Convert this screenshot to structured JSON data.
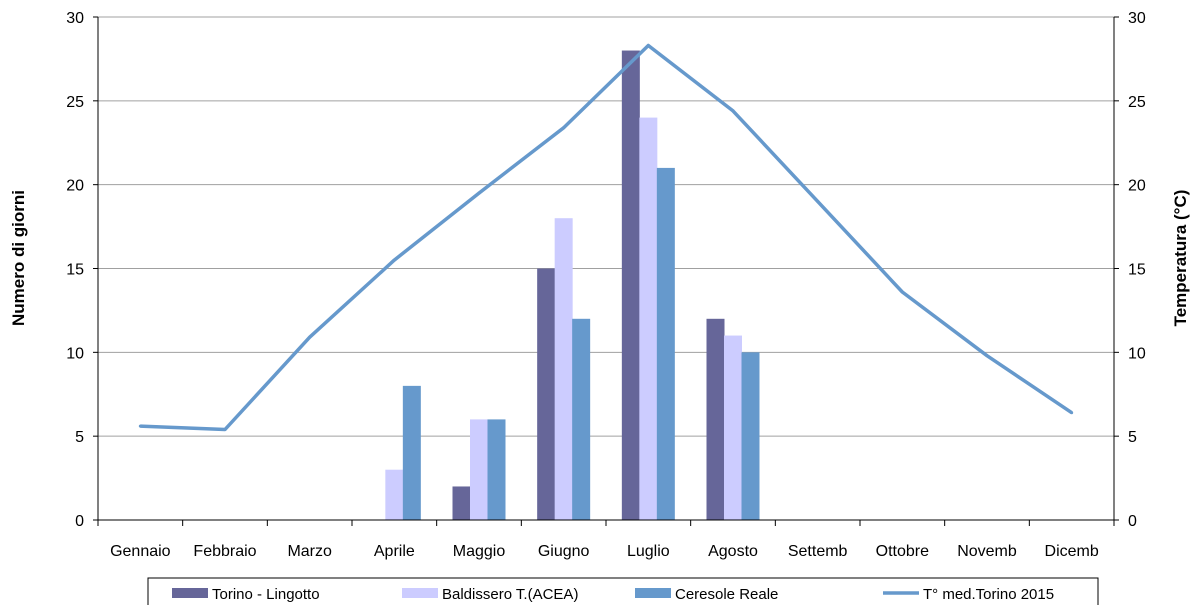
{
  "chart_data": {
    "type": "bar",
    "categories": [
      "Gennaio",
      "Febbraio",
      "Marzo",
      "Aprile",
      "Maggio",
      "Giugno",
      "Luglio",
      "Agosto",
      "Settemb",
      "Ottobre",
      "Novemb",
      "Dicemb"
    ],
    "series": [
      {
        "name": "Torino - Lingotto",
        "color": "#666699",
        "values": [
          0,
          0,
          0,
          0,
          2,
          15,
          28,
          12,
          0,
          0,
          0,
          0
        ]
      },
      {
        "name": "Baldissero T.(ACEA)",
        "color": "#ccccff",
        "values": [
          0,
          0,
          0,
          3,
          6,
          18,
          24,
          11,
          0,
          0,
          0,
          0
        ]
      },
      {
        "name": "Ceresole Reale",
        "color": "#6699cc",
        "values": [
          0,
          0,
          0,
          8,
          6,
          12,
          21,
          10,
          0,
          0,
          0,
          0
        ]
      }
    ],
    "line_series": {
      "name": "T° med.Torino 2015",
      "color": "#6699cc",
      "axis": "right",
      "values": [
        5.6,
        5.4,
        10.9,
        15.5,
        19.5,
        23.4,
        28.3,
        24.4,
        19.0,
        13.6,
        9.8,
        6.4
      ]
    },
    "ylabel": "Numero di giorni",
    "ylabel_right": "Temperatura  (°C)",
    "ylim": [
      0,
      30
    ],
    "ylim_right": [
      0,
      30
    ],
    "yticks": [
      0,
      5,
      10,
      15,
      20,
      25,
      30
    ],
    "grid": true,
    "legend_position": "bottom"
  }
}
